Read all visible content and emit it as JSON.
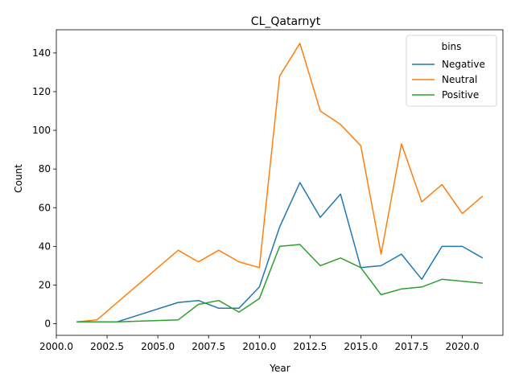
{
  "chart_data": {
    "type": "line",
    "title": "CL_Qatarnyt",
    "xlabel": "Year",
    "ylabel": "Count",
    "xlim": [
      2000,
      2022
    ],
    "ylim": [
      -6,
      152
    ],
    "xticks": [
      2000,
      2002.5,
      2005,
      2007.5,
      2010,
      2012.5,
      2015,
      2017.5,
      2020
    ],
    "xtick_labels": [
      "2000.0",
      "2002.5",
      "2005.0",
      "2007.5",
      "2010.0",
      "2012.5",
      "2015.0",
      "2017.5",
      "2020.0"
    ],
    "yticks": [
      0,
      20,
      40,
      60,
      80,
      100,
      120,
      140
    ],
    "ytick_labels": [
      "0",
      "20",
      "40",
      "60",
      "80",
      "100",
      "120",
      "140"
    ],
    "grid": false,
    "legend": {
      "title": "bins",
      "placement": "top-right"
    },
    "series": [
      {
        "name": "Negative",
        "color": "#1f77b4",
        "x": [
          2003,
          2006,
          2007,
          2008,
          2009,
          2010,
          2011,
          2012,
          2013,
          2014,
          2015,
          2016,
          2017,
          2018,
          2019,
          2020,
          2021
        ],
        "y": [
          1,
          11,
          12,
          8,
          8,
          19,
          50,
          73,
          55,
          67,
          29,
          30,
          36,
          23,
          40,
          40,
          34
        ]
      },
      {
        "name": "Neutral",
        "color": "#ff7f0e",
        "x": [
          2001,
          2002,
          2006,
          2007,
          2008,
          2009,
          2010,
          2011,
          2012,
          2013,
          2014,
          2015,
          2016,
          2017,
          2018,
          2019,
          2020,
          2021
        ],
        "y": [
          1,
          2,
          38,
          32,
          38,
          32,
          29,
          128,
          145,
          110,
          103,
          92,
          36,
          93,
          63,
          72,
          57,
          66
        ]
      },
      {
        "name": "Positive",
        "color": "#2ca02c",
        "x": [
          2001,
          2003,
          2006,
          2007,
          2008,
          2009,
          2010,
          2011,
          2012,
          2013,
          2014,
          2015,
          2016,
          2017,
          2018,
          2019,
          2020,
          2021
        ],
        "y": [
          1,
          1,
          2,
          10,
          12,
          6,
          13,
          40,
          41,
          30,
          34,
          29,
          15,
          18,
          19,
          23,
          22,
          21
        ]
      }
    ]
  }
}
